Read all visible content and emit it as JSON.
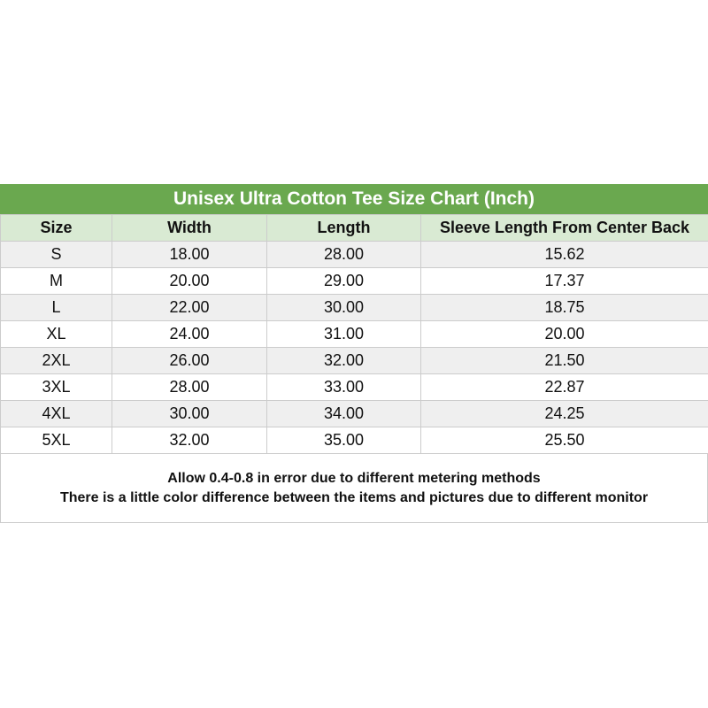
{
  "title": "Unisex Ultra Cotton Tee Size Chart (Inch)",
  "headers": [
    "Size",
    "Width",
    "Length",
    "Sleeve Length From Center Back"
  ],
  "rows": [
    [
      "S",
      "18.00",
      "28.00",
      "15.62"
    ],
    [
      "M",
      "20.00",
      "29.00",
      "17.37"
    ],
    [
      "L",
      "22.00",
      "30.00",
      "18.75"
    ],
    [
      "XL",
      "24.00",
      "31.00",
      "20.00"
    ],
    [
      "2XL",
      "26.00",
      "32.00",
      "21.50"
    ],
    [
      "3XL",
      "28.00",
      "33.00",
      "22.87"
    ],
    [
      "4XL",
      "30.00",
      "34.00",
      "24.25"
    ],
    [
      "5XL",
      "32.00",
      "35.00",
      "25.50"
    ]
  ],
  "notes": [
    "Allow 0.4-0.8 in error due to different metering methods",
    "There is a little color difference between the items and pictures due to different monitor"
  ],
  "colors": {
    "title_bg": "#6aa84f",
    "header_bg": "#d9ead3",
    "stripe": "#efefef"
  }
}
